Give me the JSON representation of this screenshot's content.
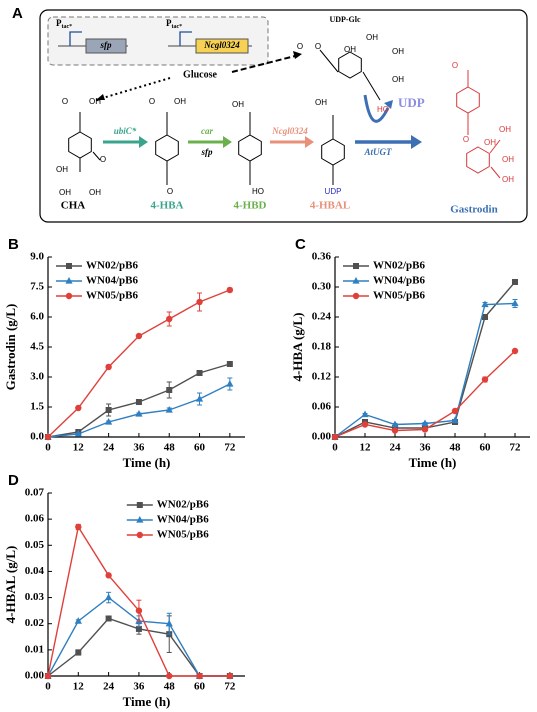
{
  "diagram": {
    "label": "A",
    "promoters": [
      {
        "p": "P",
        "sub": "tac*"
      },
      {
        "p": "P",
        "sub": "tac*"
      }
    ],
    "genes": [
      "sfp",
      "Ncgl0324"
    ],
    "glucose": "Glucose",
    "udp_glc": "UDP-Glc",
    "enzymes": [
      "ubiC*",
      "car",
      "sfp",
      "Ncgl0324",
      "AtUGT"
    ],
    "udp": "UDP",
    "compounds": [
      "CHA",
      "4-HBA",
      "4-HBD",
      "4-HBAL",
      "Gastrodin"
    ],
    "atoms": [
      "OH",
      "O",
      "OH",
      "O",
      "OH",
      "OH",
      "O",
      "OH",
      "O",
      "OH",
      "HO",
      "OH",
      "UDP",
      "O",
      "O",
      "OH",
      "OH",
      "OH",
      "OH",
      "HO",
      "O",
      "O",
      "OH",
      "OH",
      "OH",
      "OH"
    ]
  },
  "chart_data": [
    {
      "type": "line",
      "label": "B",
      "xlabel": "Time (h)",
      "ylabel": "Gastrodin (g/L)",
      "x": [
        0,
        12,
        24,
        36,
        48,
        60,
        72
      ],
      "xlim": [
        0,
        78
      ],
      "xticks": [
        0,
        12,
        24,
        36,
        48,
        60,
        72
      ],
      "ylim": [
        0,
        9
      ],
      "yticks": [
        {
          "value": 0,
          "label": "0.0"
        },
        1.5,
        {
          "value": 3,
          "label": "3.0"
        },
        4.5,
        {
          "value": 6,
          "label": "6.0"
        },
        7.5,
        {
          "value": 9,
          "label": "9.0"
        }
      ],
      "legend": "upper left",
      "series": [
        {
          "name": "WN02/pB6",
          "color": "#505050",
          "marker": "square",
          "values": [
            0,
            0.25,
            1.35,
            1.75,
            2.35,
            3.2,
            3.65
          ],
          "errors": [
            0,
            0.05,
            0.3,
            0.1,
            0.4,
            0.1,
            0.05
          ]
        },
        {
          "name": "WN04/pB6",
          "color": "#2f7fc1",
          "marker": "triangle",
          "values": [
            0,
            0.15,
            0.75,
            1.15,
            1.35,
            1.9,
            2.65
          ],
          "errors": [
            0,
            0.05,
            0.05,
            0.05,
            0.1,
            0.3,
            0.3
          ]
        },
        {
          "name": "WN05/pB6",
          "color": "#e0403a",
          "marker": "circle",
          "values": [
            0,
            1.45,
            3.5,
            5.05,
            5.9,
            6.75,
            7.35
          ],
          "errors": [
            0,
            0.05,
            0.1,
            0.05,
            0.35,
            0.45,
            0.1
          ]
        }
      ]
    },
    {
      "type": "line",
      "label": "C",
      "xlabel": "Time (h)",
      "ylabel": "4-HBA (g/L)",
      "x": [
        0,
        12,
        24,
        36,
        48,
        60,
        72
      ],
      "xlim": [
        0,
        78
      ],
      "xticks": [
        0,
        12,
        24,
        36,
        48,
        60,
        72
      ],
      "ylim": [
        0,
        0.36
      ],
      "yticks": [
        {
          "value": 0,
          "label": "0.00"
        },
        0.06,
        0.12,
        0.18,
        0.24,
        {
          "value": 0.3,
          "label": "0.30"
        },
        0.36
      ],
      "legend": "upper left",
      "series": [
        {
          "name": "WN02/pB6",
          "color": "#505050",
          "marker": "square",
          "values": [
            0,
            0.03,
            0.018,
            0.018,
            0.03,
            0.24,
            0.31
          ],
          "errors": [
            0,
            0.002,
            0.002,
            0.002,
            0.002,
            0.003,
            0.002
          ]
        },
        {
          "name": "WN04/pB6",
          "color": "#2f7fc1",
          "marker": "triangle",
          "values": [
            0,
            0.045,
            0.025,
            0.027,
            0.033,
            0.265,
            0.267
          ],
          "errors": [
            0,
            0.002,
            0.002,
            0.002,
            0.002,
            0.004,
            0.008
          ]
        },
        {
          "name": "WN05/pB6",
          "color": "#e0403a",
          "marker": "circle",
          "values": [
            0,
            0.025,
            0.013,
            0.015,
            0.052,
            0.115,
            0.172
          ],
          "errors": [
            0,
            0.002,
            0.002,
            0.002,
            0.002,
            0.005,
            0.002
          ]
        }
      ]
    },
    {
      "type": "line",
      "label": "D",
      "xlabel": "Time (h)",
      "ylabel": "4-HBAL (g/L)",
      "x": [
        0,
        12,
        24,
        36,
        48,
        60,
        72
      ],
      "xlim": [
        0,
        78
      ],
      "xticks": [
        0,
        12,
        24,
        36,
        48,
        60,
        72
      ],
      "ylim": [
        0,
        0.07
      ],
      "yticks": [
        {
          "value": 0,
          "label": "0.00"
        },
        0.01,
        0.02,
        0.03,
        0.04,
        0.05,
        0.06,
        0.07
      ],
      "legend": "upper center",
      "series": [
        {
          "name": "WN02/pB6",
          "color": "#505050",
          "marker": "square",
          "values": [
            0,
            0.009,
            0.022,
            0.018,
            0.016,
            0,
            0
          ],
          "errors": [
            0,
            0.001,
            0,
            0.002,
            0.007,
            0,
            0
          ]
        },
        {
          "name": "WN04/pB6",
          "color": "#2f7fc1",
          "marker": "triangle",
          "values": [
            0,
            0.021,
            0.03,
            0.021,
            0.02,
            0,
            0
          ],
          "errors": [
            0,
            0.0005,
            0.002,
            0.002,
            0.004,
            0,
            0
          ]
        },
        {
          "name": "WN05/pB6",
          "color": "#e0403a",
          "marker": "circle",
          "values": [
            0,
            0.057,
            0.0385,
            0.025,
            0,
            0,
            0
          ],
          "errors": [
            0,
            0.001,
            0,
            0.004,
            0,
            0,
            0
          ]
        }
      ]
    }
  ]
}
